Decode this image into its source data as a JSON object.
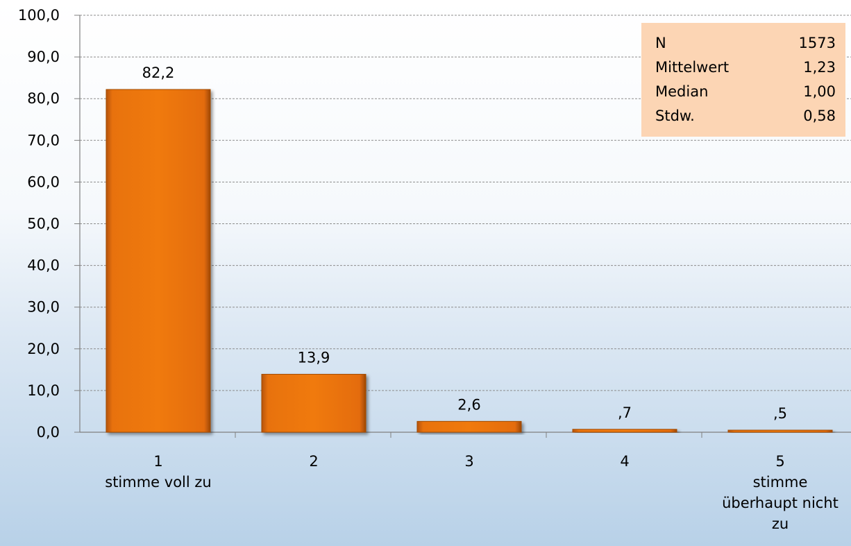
{
  "chart_data": {
    "type": "bar",
    "categories": [
      "1",
      "2",
      "3",
      "4",
      "5"
    ],
    "category_labels": [
      [
        "1",
        "stimme voll zu"
      ],
      [
        "2"
      ],
      [
        "3"
      ],
      [
        "4"
      ],
      [
        "5",
        "stimme",
        "überhaupt nicht",
        "zu"
      ]
    ],
    "values": [
      82.2,
      13.9,
      2.6,
      0.7,
      0.5
    ],
    "data_labels": [
      "82,2",
      "13,9",
      "2,6",
      ",7",
      ",5"
    ],
    "ylim": [
      0,
      100
    ],
    "yticks": [
      "0,0",
      "10,0",
      "20,0",
      "30,0",
      "40,0",
      "50,0",
      "60,0",
      "70,0",
      "80,0",
      "90,0",
      "100,0"
    ],
    "grid": true,
    "bar_color": "#e46c0a",
    "title": "",
    "xlabel": "",
    "ylabel": ""
  },
  "stats": {
    "rows": [
      {
        "label": "N",
        "value": "1573"
      },
      {
        "label": "Mittelwert",
        "value": "1,23"
      },
      {
        "label": "Median",
        "value": "1,00"
      },
      {
        "label": "Stdw.",
        "value": "0,58"
      }
    ],
    "background": "#fcd5b4"
  }
}
